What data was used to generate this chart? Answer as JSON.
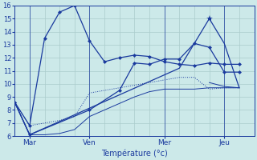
{
  "background_color": "#cce9e9",
  "grid_color": "#aacccc",
  "line_color": "#1a3a9e",
  "xlabel": "Température (°c)",
  "ylim": [
    6,
    16
  ],
  "xlim": [
    0,
    16
  ],
  "yticks": [
    6,
    7,
    8,
    9,
    10,
    11,
    12,
    13,
    14,
    15,
    16
  ],
  "xtick_labels": [
    "Mar",
    "Ven",
    "Mer",
    "Jeu"
  ],
  "xtick_positions": [
    1,
    5,
    10,
    14
  ],
  "vline_positions": [
    1,
    5,
    10,
    14
  ],
  "line1": {
    "x": [
      0,
      1,
      2,
      3,
      4,
      5,
      6,
      7,
      8,
      9,
      10,
      11,
      12,
      13,
      14,
      15
    ],
    "y": [
      8.6,
      6.8,
      13.5,
      15.5,
      16.0,
      13.3,
      11.7,
      12.0,
      12.2,
      12.1,
      11.7,
      11.5,
      11.4,
      11.6,
      11.5,
      11.5
    ]
  },
  "line2": {
    "x": [
      0,
      1,
      2,
      3,
      4,
      5,
      6,
      7,
      8,
      9,
      10,
      11,
      12,
      13,
      14,
      15
    ],
    "y": [
      8.6,
      6.8,
      7.0,
      7.2,
      7.5,
      9.3,
      9.5,
      9.7,
      9.9,
      10.1,
      10.3,
      10.5,
      10.5,
      9.6,
      9.7,
      9.7
    ]
  },
  "line3": {
    "x": [
      0,
      1,
      2,
      3,
      4,
      5,
      6,
      7,
      8,
      9,
      10,
      11,
      12,
      13,
      14,
      15
    ],
    "y": [
      8.6,
      6.1,
      6.1,
      6.2,
      6.5,
      7.5,
      8.0,
      8.5,
      9.0,
      9.4,
      9.6,
      9.6,
      9.6,
      9.7,
      9.7,
      9.7
    ]
  },
  "line4": {
    "x": [
      0,
      1,
      5,
      7,
      8,
      9,
      10,
      11,
      12,
      13,
      14,
      15
    ],
    "y": [
      8.6,
      6.1,
      8.0,
      9.5,
      11.6,
      11.5,
      11.9,
      11.9,
      13.1,
      12.8,
      10.9,
      10.9
    ]
  },
  "line5": {
    "x": [
      0,
      1,
      11,
      12,
      13,
      14,
      15
    ],
    "y": [
      8.6,
      6.1,
      11.2,
      13.1,
      15.0,
      13.1,
      9.7
    ]
  },
  "line6": {
    "x": [
      13,
      14,
      15
    ],
    "y": [
      10.1,
      9.8,
      9.7
    ]
  }
}
